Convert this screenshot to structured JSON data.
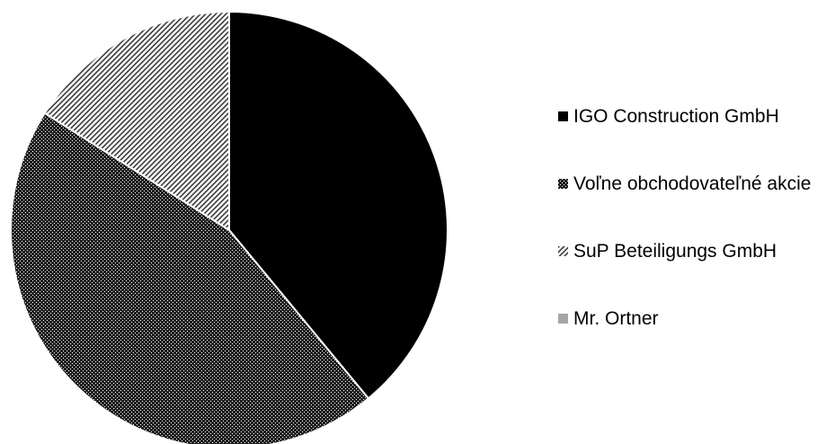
{
  "chart_data": {
    "type": "pie",
    "title": "",
    "legend_position": "right",
    "start_angle_deg": 0,
    "direction": "clockwise",
    "slices": [
      {
        "label": "IGO Construction GmbH",
        "value": 39.0,
        "fill": "#000000",
        "pattern": "solid"
      },
      {
        "label": "Voľne obchodovateľné akcie",
        "value": 45.0,
        "fill": "#2a2a2a",
        "pattern": "dense-dots"
      },
      {
        "label": "SuP Beteiligungs GmbH",
        "value": 16.0,
        "fill": "#9a9a9a",
        "pattern": "diagonal-hatch"
      },
      {
        "label": "Mr. Ortner",
        "value": 0.0,
        "fill": "#a6a6a6",
        "pattern": "solid"
      }
    ]
  }
}
